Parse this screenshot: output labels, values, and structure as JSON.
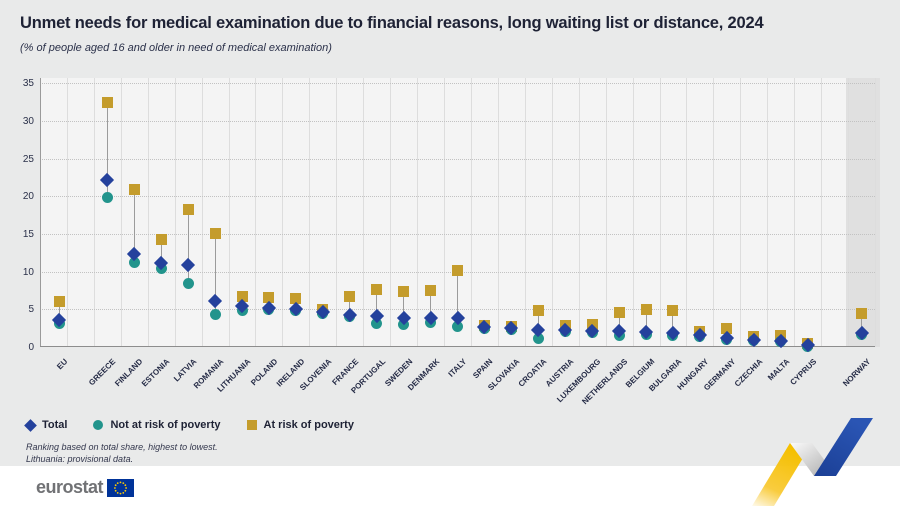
{
  "header": {
    "title": "Unmet needs for medical examination due to financial reasons, long waiting list or distance, 2024",
    "subtitle": "(% of people aged 16 and older in need of medical examination)"
  },
  "chart_data": {
    "type": "scatter",
    "title": "Unmet needs for medical examination due to financial reasons, long waiting list or distance, 2024",
    "subtitle": "(% of people aged 16 and older in need of medical examination)",
    "categories": [
      "EU",
      "GREECE",
      "FINLAND",
      "ESTONIA",
      "LATVIA",
      "ROMANIA",
      "LITHUANIA",
      "POLAND",
      "IRELAND",
      "SLOVENIA",
      "FRANCE",
      "PORTUGAL",
      "SWEDEN",
      "DENMARK",
      "ITALY",
      "SPAIN",
      "SLOVAKIA",
      "CROATIA",
      "AUSTRIA",
      "LUXEMBOURG",
      "NETHERLANDS",
      "BELGIUM",
      "BULGARIA",
      "HUNGARY",
      "GERMANY",
      "CZECHIA",
      "MALTA",
      "CYPRUS",
      "NORWAY"
    ],
    "series": [
      {
        "name": "Total",
        "marker": "diamond",
        "color": "#24419c",
        "values": [
          3.6,
          22.1,
          12.4,
          11.2,
          10.9,
          6.1,
          5.4,
          5.2,
          5.1,
          4.7,
          4.3,
          4.1,
          3.9,
          3.9,
          3.8,
          2.6,
          2.5,
          2.3,
          2.2,
          2.1,
          2.1,
          2.0,
          1.8,
          1.6,
          1.2,
          0.9,
          0.8,
          0.2,
          1.9
        ]
      },
      {
        "name": "Not at risk of poverty",
        "marker": "circle",
        "color": "#22948c",
        "values": [
          3.1,
          19.8,
          11.2,
          10.4,
          8.4,
          4.3,
          4.9,
          5.0,
          4.8,
          4.5,
          4.0,
          3.1,
          3.0,
          3.3,
          2.7,
          2.5,
          2.3,
          1.1,
          2.0,
          1.9,
          1.5,
          1.7,
          1.5,
          1.4,
          1.0,
          0.8,
          0.7,
          0.1,
          1.7
        ]
      },
      {
        "name": "At risk of poverty",
        "marker": "square",
        "color": "#c49c2c",
        "values": [
          6.0,
          32.4,
          20.9,
          14.2,
          18.3,
          15.1,
          6.7,
          6.5,
          6.4,
          5.0,
          6.7,
          7.6,
          7.4,
          7.5,
          10.1,
          2.8,
          2.7,
          4.9,
          2.8,
          3.0,
          4.6,
          5.0,
          4.8,
          2.1,
          2.4,
          1.4,
          1.5,
          0.5,
          4.5
        ]
      }
    ],
    "ylim": [
      0,
      35
    ],
    "ytick_step": 5,
    "grid": true,
    "legend_position": "bottom-left",
    "gaps_after": [
      "EU",
      "CYPRUS"
    ],
    "highlighted_category": "NORWAY"
  },
  "footnotes": {
    "line1": "Ranking based on total share, highest to lowest.",
    "line2": "Lithuania: provisional data."
  },
  "footer": {
    "logo_text": "eurostat"
  },
  "colors": {
    "total": "#24419c",
    "not_at_risk": "#22948c",
    "at_risk": "#c49c2c",
    "background": "#e9eaea",
    "plot_background": "#f4f4f4",
    "highlight_band": "#e0e0e0",
    "title_text": "#1e2235"
  }
}
